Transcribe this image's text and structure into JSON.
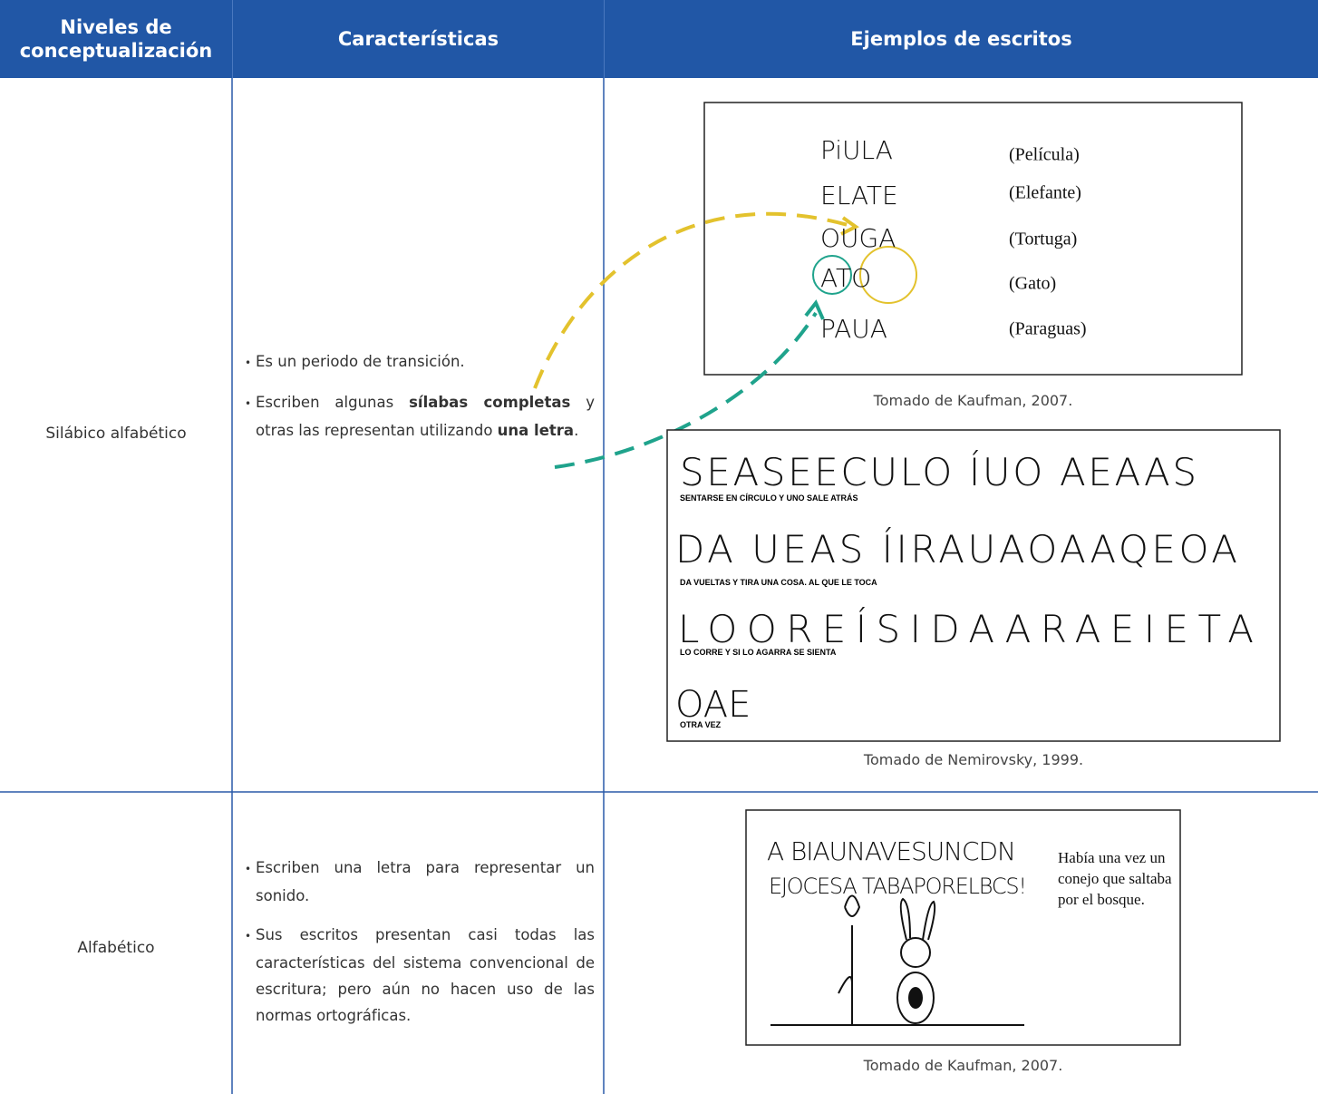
{
  "table": {
    "headers": [
      "Niveles de conceptualización",
      "Características",
      "Ejemplos de escritos"
    ],
    "rows": [
      {
        "level": "Silábico alfabético",
        "characteristics": [
          {
            "parts": [
              "Es un periodo de transición."
            ],
            "bold": [
              false
            ]
          },
          {
            "parts": [
              "Escriben algunas ",
              "sílabas completas",
              " y otras las representan utilizando ",
              "una letra",
              "."
            ],
            "bold": [
              false,
              true,
              false,
              true,
              false
            ]
          }
        ],
        "examples": [
          {
            "writings": [
              {
                "child": "PiULA",
                "meaning": "(Película)"
              },
              {
                "child": "ELATE",
                "meaning": "(Elefante)"
              },
              {
                "child": "OUGA",
                "meaning": "(Tortuga)"
              },
              {
                "child": "ATO",
                "meaning": "(Gato)"
              },
              {
                "child": "PAUA",
                "meaning": "(Paraguas)"
              }
            ],
            "caption": "Tomado de Kaufman, 2007."
          },
          {
            "lines": [
              {
                "child": "SEASEECULO ÍUO AEAAS",
                "transcript": "SENTARSE EN CÍRCULO Y UNO SALE ATRÁS"
              },
              {
                "child": "DA UEAS ÍIRAUAOAAQEOA",
                "transcript": "DA VUELTAS Y TIRA UNA COSA.  AL QUE LE TOCA"
              },
              {
                "child": "LOOREÍSIDAARAEIETA",
                "transcript": "LO CORRE Y SI LO AGARRA SE SIENTA"
              },
              {
                "child": "OAE",
                "transcript": "OTRA VEZ"
              }
            ],
            "caption": "Tomado de Nemirovsky, 1999."
          }
        ]
      },
      {
        "level": "Alfabético",
        "characteristics": [
          {
            "parts": [
              "Escriben una letra para representar un sonido."
            ],
            "bold": [
              false
            ]
          },
          {
            "parts": [
              "Sus escritos presentan casi todas las características del sistema convencional de escritura; pero aún no hacen uso de las normas ortográficas."
            ],
            "bold": [
              false
            ]
          }
        ],
        "examples": [
          {
            "child": [
              "A BIAUNAVESUNCDN",
              "EJOCESA TABAPORELBCS!"
            ],
            "text": [
              "Había una vez un",
              "conejo que saltaba",
              "por el bosque."
            ],
            "caption": "Tomado de Kaufman, 2007."
          }
        ]
      }
    ]
  }
}
